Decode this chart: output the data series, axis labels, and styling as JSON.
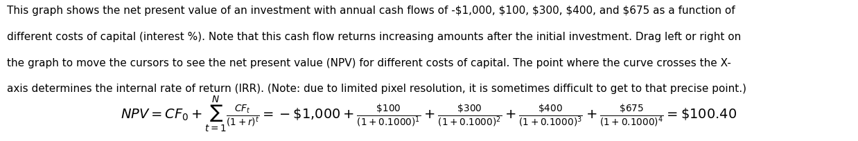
{
  "background_color": "#ffffff",
  "text_color": "#000000",
  "paragraph_line1": "This graph shows the net present value of an investment with annual cash flows of -$1,000, $100, $300, $400, and $675 as a function of",
  "paragraph_line2": "different costs of capital (interest %). Note that this cash flow returns increasing amounts after the initial investment. Drag left or right on",
  "paragraph_line3": "the graph to move the cursors to see the net present value (NPV) for different costs of capital. The point where the curve crosses the X-",
  "paragraph_line4": "axis determines the internal rate of return (IRR). (Note: due to limited pixel resolution, it is sometimes difficult to get to that precise point.)",
  "formula_fontsize": 14.0,
  "text_fontsize": 11.0,
  "fig_width": 12.38,
  "fig_height": 2.04,
  "dpi": 100
}
